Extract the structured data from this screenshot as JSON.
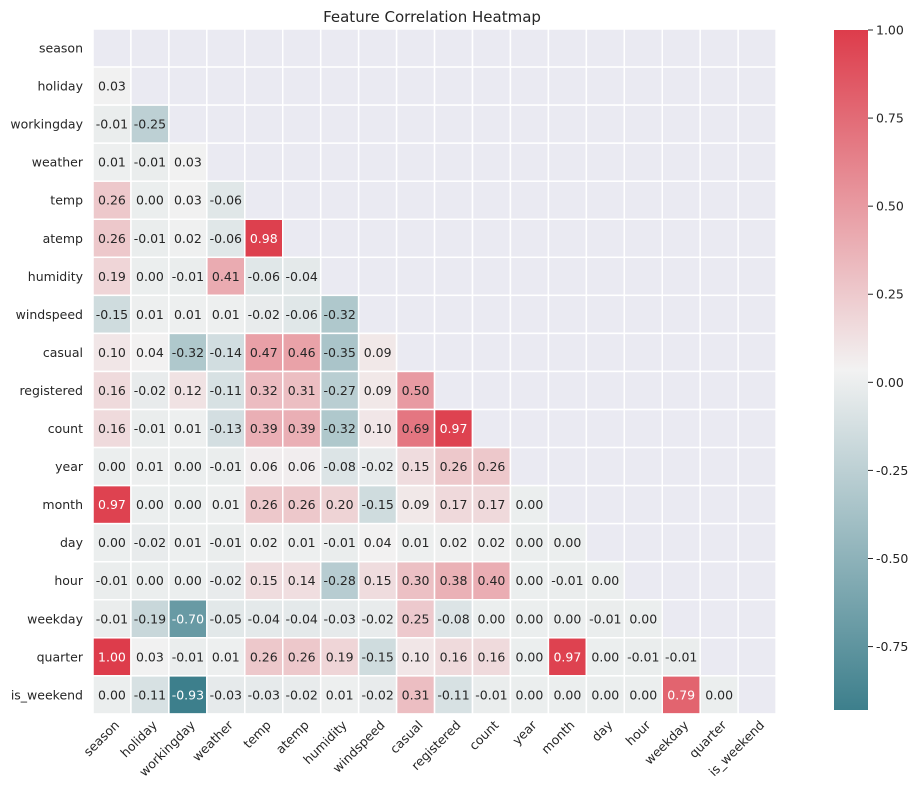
{
  "chart_data": {
    "type": "heatmap",
    "title": "Feature Correlation Heatmap",
    "labels": [
      "season",
      "holiday",
      "workingday",
      "weather",
      "temp",
      "atemp",
      "humidity",
      "windspeed",
      "casual",
      "registered",
      "count",
      "year",
      "month",
      "day",
      "hour",
      "weekday",
      "quarter",
      "is_weekend"
    ],
    "values": [
      [],
      [
        0.03
      ],
      [
        -0.01,
        -0.25
      ],
      [
        0.01,
        -0.01,
        0.03
      ],
      [
        0.26,
        0.0,
        0.03,
        -0.06
      ],
      [
        0.26,
        -0.01,
        0.02,
        -0.06,
        0.98
      ],
      [
        0.19,
        0.0,
        -0.01,
        0.41,
        -0.06,
        -0.04
      ],
      [
        -0.15,
        0.01,
        0.01,
        0.01,
        -0.02,
        -0.06,
        -0.32
      ],
      [
        0.1,
        0.04,
        -0.32,
        -0.14,
        0.47,
        0.46,
        -0.35,
        0.09
      ],
      [
        0.16,
        -0.02,
        0.12,
        -0.11,
        0.32,
        0.31,
        -0.27,
        0.09,
        0.5
      ],
      [
        0.16,
        -0.01,
        0.01,
        -0.13,
        0.39,
        0.39,
        -0.32,
        0.1,
        0.69,
        0.97
      ],
      [
        -0.0,
        0.01,
        -0.0,
        -0.01,
        0.06,
        0.06,
        -0.08,
        -0.02,
        0.15,
        0.26,
        0.26
      ],
      [
        0.97,
        0.0,
        -0.0,
        0.01,
        0.26,
        0.26,
        0.2,
        -0.15,
        0.09,
        0.17,
        0.17,
        -0.0
      ],
      [
        0.0,
        -0.02,
        0.01,
        -0.01,
        0.02,
        0.01,
        -0.01,
        0.04,
        0.01,
        0.02,
        0.02,
        0.0,
        0.0
      ],
      [
        -0.01,
        -0.0,
        0.0,
        -0.02,
        0.15,
        0.14,
        -0.28,
        0.15,
        0.3,
        0.38,
        0.4,
        -0.0,
        -0.01,
        0.0
      ],
      [
        -0.01,
        -0.19,
        -0.7,
        -0.05,
        -0.04,
        -0.04,
        -0.03,
        -0.02,
        0.25,
        -0.08,
        -0.0,
        -0.0,
        -0.0,
        -0.01,
        -0.0
      ],
      [
        1.0,
        0.03,
        -0.01,
        0.01,
        0.26,
        0.26,
        0.19,
        -0.15,
        0.1,
        0.16,
        0.16,
        -0.0,
        0.97,
        0.0,
        -0.01,
        -0.01
      ],
      [
        -0.0,
        -0.11,
        -0.93,
        -0.03,
        -0.03,
        -0.02,
        0.01,
        -0.02,
        0.31,
        -0.11,
        -0.01,
        -0.0,
        0.0,
        -0.0,
        -0.0,
        0.79,
        -0.0
      ]
    ],
    "colorbar": {
      "range": [
        -0.93,
        1.0
      ],
      "ticks": [
        1.0,
        0.75,
        0.5,
        0.25,
        0.0,
        -0.25,
        -0.5,
        -0.75
      ],
      "tick_labels": [
        "1.00",
        "0.75",
        "0.50",
        "0.25",
        "0.00",
        "-0.25",
        "-0.50",
        "-0.75"
      ]
    },
    "colors": {
      "negative": "#3d7f8c",
      "neutral": "#f2f2f2",
      "positive": "#dd3c4b",
      "masked": "#eaeaf2",
      "grid": "#ffffff"
    },
    "masked_upper_triangle": true
  }
}
